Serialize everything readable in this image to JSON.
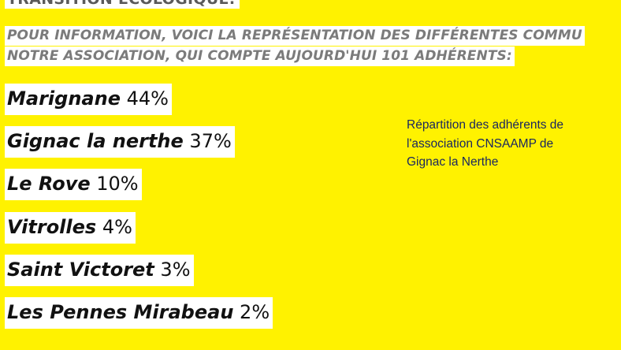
{
  "top_heading": "TRANSITION ÉCOLOGIQUE.",
  "intro": {
    "line1": "POUR INFORMATION, VOICI LA REPRÉSENTATION DES DIFFÉRENTES COMMU",
    "line2": "NOTRE ASSOCIATION, QUI COMPTE AUJOURD'HUI 101 ADHÉRENTS:"
  },
  "communes": [
    {
      "name": "Marignane",
      "percent": "44%"
    },
    {
      "name": "Gignac la nerthe",
      "percent": "37%"
    },
    {
      "name": "Le Rove",
      "percent": "10%"
    },
    {
      "name": "Vitrolles",
      "percent": "4%"
    },
    {
      "name": "Saint Victoret",
      "percent": "3%"
    },
    {
      "name": "Les Pennes Mirabeau",
      "percent": "2%"
    }
  ],
  "caption": {
    "line1": "Répartition des adhérents de",
    "line2": "l'association CNSAAMP de",
    "line3": "Gignac la Nerthe"
  },
  "colors": {
    "background": "#FFF200",
    "highlight": "#FFFFFF",
    "intro_text": "#7B7B7B",
    "caption_text": "#1A2760"
  }
}
